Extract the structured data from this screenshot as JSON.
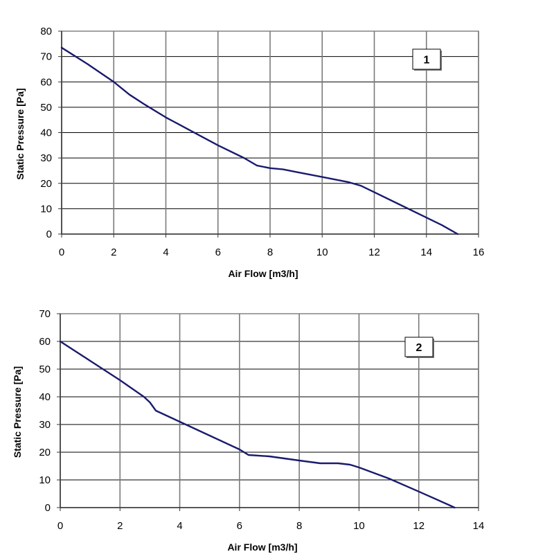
{
  "chart_data": [
    {
      "type": "line",
      "badge": "1",
      "xlabel": "Air Flow [m3/h]",
      "ylabel": "Static Pressure [Pa]",
      "xlim": [
        0,
        16
      ],
      "ylim": [
        0,
        80
      ],
      "xticks": [
        0,
        2,
        4,
        6,
        8,
        10,
        12,
        14,
        16
      ],
      "yticks": [
        0,
        10,
        20,
        30,
        40,
        50,
        60,
        70,
        80
      ],
      "grid": true,
      "line_color": "#1a1a6e",
      "series": [
        {
          "x": [
            0,
            1,
            2,
            2.6,
            3.2,
            4,
            5,
            6,
            7,
            7.5,
            8,
            8.5,
            9,
            10,
            11,
            11.5,
            11.8,
            12,
            13,
            14,
            14.6,
            15.2
          ],
          "y": [
            73.5,
            67,
            60,
            55,
            51,
            46,
            40.5,
            35,
            30,
            27,
            26,
            25.5,
            24.5,
            22.5,
            20.5,
            19,
            17.5,
            16.5,
            11.5,
            6.5,
            3.5,
            0
          ]
        }
      ]
    },
    {
      "type": "line",
      "badge": "2",
      "xlabel": "Air Flow [m3/h]",
      "ylabel": "Static Pressure [Pa]",
      "xlim": [
        0,
        14
      ],
      "ylim": [
        0,
        70
      ],
      "xticks": [
        0,
        2,
        4,
        6,
        8,
        10,
        12,
        14
      ],
      "yticks": [
        0,
        10,
        20,
        30,
        40,
        50,
        60,
        70
      ],
      "grid": true,
      "line_color": "#1a1a6e",
      "series": [
        {
          "x": [
            0,
            1,
            2,
            2.8,
            3.0,
            3.2,
            4,
            5,
            6,
            6.3,
            7,
            8,
            8.7,
            9.3,
            9.7,
            10,
            11,
            12,
            13,
            13.2
          ],
          "y": [
            60,
            53,
            46,
            40,
            38,
            35,
            31,
            26,
            21,
            19,
            18.5,
            17,
            16,
            16,
            15.5,
            14.5,
            10.5,
            5.8,
            1.0,
            0
          ]
        }
      ]
    }
  ]
}
